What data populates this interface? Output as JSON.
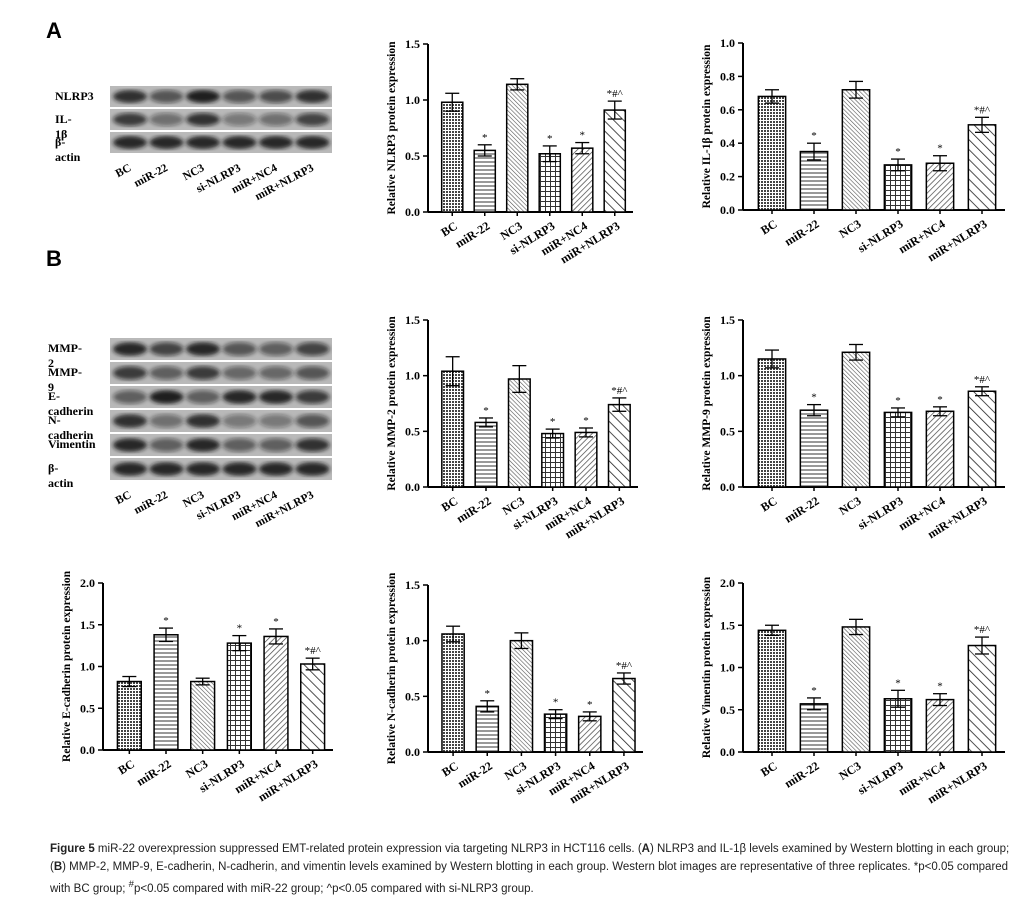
{
  "panels": {
    "a": "A",
    "b": "B"
  },
  "groups": [
    "BC",
    "miR-22",
    "NC3",
    "si-NLRP3",
    "miR+NC4",
    "miR+NLRP3"
  ],
  "blots": {
    "a": {
      "rows": [
        "NLRP3",
        "IL-1β",
        "β-actin"
      ]
    },
    "b": {
      "rows": [
        "MMP-2",
        "MMP-9",
        "E-cadherin",
        "N-cadherin",
        "Vimentin",
        "β-actin"
      ]
    }
  },
  "chart_data": [
    {
      "id": "nlrp3",
      "type": "bar",
      "ylabel": "Relative NLRP3 protein expression",
      "categories": [
        "BC",
        "miR-22",
        "NC3",
        "si-NLRP3",
        "miR+NC4",
        "miR+NLRP3"
      ],
      "values": [
        0.98,
        0.55,
        1.14,
        0.52,
        0.57,
        0.91
      ],
      "errors": [
        0.08,
        0.05,
        0.05,
        0.07,
        0.05,
        0.08
      ],
      "annotations": [
        "",
        "*",
        "",
        "*",
        "*",
        "*#^"
      ],
      "ylim": [
        0,
        1.5
      ],
      "yticks": [
        "0.0",
        "0.5",
        "1.0",
        "1.5"
      ],
      "grid": false
    },
    {
      "id": "il1b",
      "type": "bar",
      "ylabel": "Relative IL-1β protein expression",
      "categories": [
        "BC",
        "miR-22",
        "NC3",
        "si-NLRP3",
        "miR+NC4",
        "miR+NLRP3"
      ],
      "values": [
        0.68,
        0.35,
        0.72,
        0.27,
        0.28,
        0.51
      ],
      "errors": [
        0.04,
        0.05,
        0.05,
        0.035,
        0.045,
        0.045
      ],
      "annotations": [
        "",
        "*",
        "",
        "*",
        "*",
        "*#^"
      ],
      "ylim": [
        0,
        1.0
      ],
      "yticks": [
        "0.0",
        "0.2",
        "0.4",
        "0.6",
        "0.8",
        "1.0"
      ],
      "grid": false
    },
    {
      "id": "mmp2",
      "type": "bar",
      "ylabel": "Relative MMP-2 protein expression",
      "categories": [
        "BC",
        "miR-22",
        "NC3",
        "si-NLRP3",
        "miR+NC4",
        "miR+NLRP3"
      ],
      "values": [
        1.04,
        0.58,
        0.97,
        0.48,
        0.49,
        0.74
      ],
      "errors": [
        0.13,
        0.04,
        0.12,
        0.04,
        0.04,
        0.06
      ],
      "annotations": [
        "",
        "*",
        "",
        "*",
        "*",
        "*#^"
      ],
      "ylim": [
        0,
        1.5
      ],
      "yticks": [
        "0.0",
        "0.5",
        "1.0",
        "1.5"
      ],
      "grid": false
    },
    {
      "id": "mmp9",
      "type": "bar",
      "ylabel": "Relative MMP-9 protein expression",
      "categories": [
        "BC",
        "miR-22",
        "NC3",
        "si-NLRP3",
        "miR+NC4",
        "miR+NLRP3"
      ],
      "values": [
        1.15,
        0.69,
        1.21,
        0.67,
        0.68,
        0.86
      ],
      "errors": [
        0.08,
        0.05,
        0.07,
        0.04,
        0.04,
        0.04
      ],
      "annotations": [
        "",
        "*",
        "",
        "*",
        "*",
        "*#^"
      ],
      "ylim": [
        0,
        1.5
      ],
      "yticks": [
        "0.0",
        "0.5",
        "1.0",
        "1.5"
      ],
      "grid": false
    },
    {
      "id": "ecad",
      "type": "bar",
      "ylabel": "Relative E-cadherin protein expression",
      "categories": [
        "BC",
        "miR-22",
        "NC3",
        "si-NLRP3",
        "miR+NC4",
        "miR+NLRP3"
      ],
      "values": [
        0.82,
        1.38,
        0.82,
        1.28,
        1.36,
        1.03
      ],
      "errors": [
        0.06,
        0.08,
        0.04,
        0.09,
        0.09,
        0.07
      ],
      "annotations": [
        "",
        "*",
        "",
        "*",
        "*",
        "*#^"
      ],
      "ylim": [
        0,
        2.0
      ],
      "yticks": [
        "0.0",
        "0.5",
        "1.0",
        "1.5",
        "2.0"
      ],
      "grid": false
    },
    {
      "id": "ncad",
      "type": "bar",
      "ylabel": "Relative N-cadherin protein expression",
      "categories": [
        "BC",
        "miR-22",
        "NC3",
        "si-NLRP3",
        "miR+NC4",
        "miR+NLRP3"
      ],
      "values": [
        1.06,
        0.41,
        1.0,
        0.34,
        0.32,
        0.66
      ],
      "errors": [
        0.07,
        0.05,
        0.07,
        0.04,
        0.04,
        0.05
      ],
      "annotations": [
        "",
        "*",
        "",
        "*",
        "*",
        "*#^"
      ],
      "ylim": [
        0,
        1.5
      ],
      "yticks": [
        "0.0",
        "0.5",
        "1.0",
        "1.5"
      ],
      "grid": false
    },
    {
      "id": "vim",
      "type": "bar",
      "ylabel": "Relative Vimentin protein expression",
      "categories": [
        "BC",
        "miR-22",
        "NC3",
        "si-NLRP3",
        "miR+NC4",
        "miR+NLRP3"
      ],
      "values": [
        1.44,
        0.57,
        1.48,
        0.63,
        0.62,
        1.26
      ],
      "errors": [
        0.06,
        0.07,
        0.09,
        0.1,
        0.07,
        0.1
      ],
      "annotations": [
        "",
        "*",
        "",
        "*",
        "*",
        "*#^"
      ],
      "ylim": [
        0,
        2.0
      ],
      "yticks": [
        "0.0",
        "0.5",
        "1.0",
        "1.5",
        "2.0"
      ],
      "grid": false
    }
  ],
  "caption": {
    "label": "Figure 5",
    "text1": " miR-22 overexpression suppressed EMT-related protein expression via targeting NLRP3 in HCT116 cells. (",
    "a": "A",
    "text2": ") NLRP3 and IL-1β levels examined by Western blotting in each group; (",
    "b": "B",
    "text3": ") MMP-2, MMP-9, E-cadherin, N-cadherin, and vimentin levels examined by Western blotting in each group. Western blot images are representative of three replicates. *p<0.05 compared with BC group; ",
    "hash": "#",
    "text4": "p<0.05 compared with miR-22 group; ^p<0.05 compared with si-NLRP3 group."
  }
}
